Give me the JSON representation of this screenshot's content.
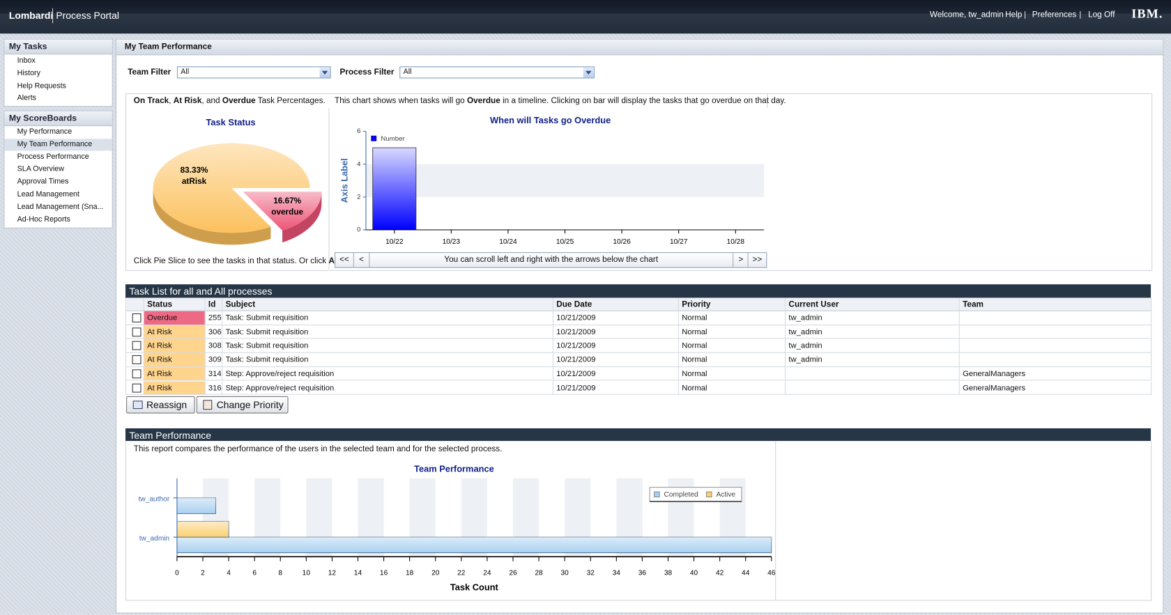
{
  "header": {
    "brand": "Lombardi",
    "product": "Process Portal",
    "welcome": "Welcome, tw_admin",
    "links": [
      "Help",
      "Preferences",
      "Log Off"
    ],
    "logo": "IBM."
  },
  "sidebar": [
    {
      "title": "My Tasks",
      "items": [
        "Inbox",
        "History",
        "Help Requests",
        "Alerts"
      ]
    },
    {
      "title": "My ScoreBoards",
      "items": [
        "My Performance",
        "My Team Performance",
        "Process Performance",
        "SLA Overview",
        "Approval Times",
        "Lead Management",
        "Lead Management (Sna...",
        "Ad-Hoc Reports"
      ],
      "selected": 1
    }
  ],
  "panel_title": "My Team Performance",
  "filters": [
    {
      "label": "Team Filter",
      "value": "All"
    },
    {
      "label": "Process Filter",
      "value": "All"
    }
  ],
  "pie": {
    "type": "pie",
    "intro": [
      "On Track",
      ", ",
      "At Risk",
      ", and ",
      "Overdue",
      " Task Percentages."
    ],
    "title": "Task Status",
    "categories": [
      "atRisk",
      "overdue"
    ],
    "values": [
      83.33,
      16.67
    ],
    "value_labels": [
      "83.33%",
      "16.67%"
    ],
    "colors": [
      "#fcc15e",
      "#ee5577"
    ],
    "explode": [
      false,
      true
    ],
    "footer": [
      "Click Pie Slice to see the tasks in that status. Or click ",
      "All",
      "."
    ]
  },
  "timeline": {
    "type": "bar",
    "description": [
      "This chart shows when tasks will go ",
      "Overdue",
      " in a timeline. Clicking on bar will display the tasks that go overdue on that day."
    ],
    "title": "When will Tasks go Overdue",
    "y_label": "Axis Label",
    "categories": [
      "10/22",
      "10/23",
      "10/24",
      "10/25",
      "10/26",
      "10/27",
      "10/28"
    ],
    "series": [
      {
        "name": "Number",
        "color": "#0000ff",
        "values": [
          5,
          0,
          0,
          0,
          0,
          0,
          0
        ]
      }
    ],
    "ylim": [
      0,
      6
    ],
    "yticks": [
      0,
      2,
      4,
      6
    ],
    "scroll": {
      "first": "<<",
      "prev": "<",
      "hint": "You can scroll left and right with the arrows below the chart",
      "next": ">",
      "last": ">>"
    }
  },
  "table": {
    "title": "Task List for all and All processes",
    "columns": [
      "Status",
      "Id",
      "Subject",
      "Due Date",
      "Priority",
      "Current User",
      "Team"
    ],
    "rows": [
      [
        "Overdue",
        255,
        "Task: Submit requisition",
        "10/21/2009",
        "Normal",
        "tw_admin",
        null
      ],
      [
        "At Risk",
        306,
        "Task: Submit requisition",
        "10/21/2009",
        "Normal",
        "tw_admin",
        null
      ],
      [
        "At Risk",
        308,
        "Task: Submit requisition",
        "10/21/2009",
        "Normal",
        "tw_admin",
        null
      ],
      [
        "At Risk",
        309,
        "Task: Submit requisition",
        "10/21/2009",
        "Normal",
        "tw_admin",
        null
      ],
      [
        "At Risk",
        314,
        "Step: Approve/reject requisition",
        "10/21/2009",
        "Normal",
        null,
        "GeneralManagers"
      ],
      [
        "At Risk",
        316,
        "Step: Approve/reject requisition",
        "10/21/2009",
        "Normal",
        null,
        "GeneralManagers"
      ]
    ],
    "status_colors": [
      "#ee6a84",
      "#ffd48c",
      "#ffd48c",
      "#ffd48c",
      "#ffd48c",
      "#ffd48c"
    ],
    "buttons": [
      "Reassign",
      "Change Priority"
    ]
  },
  "team": {
    "type": "bar",
    "orientation": "horizontal",
    "heading": "Team Performance",
    "description": "This report compares the performance of the users in the selected team and for the selected process.",
    "title": "Team Performance",
    "categories": [
      "tw_author",
      "tw_admin"
    ],
    "series": [
      {
        "name": "Completed",
        "color": "#a9d0f0",
        "values": [
          3,
          46
        ]
      },
      {
        "name": "Active",
        "color": "#fbd070",
        "values": [
          0,
          4
        ]
      }
    ],
    "x_label": "Task Count",
    "xlim": [
      0,
      46
    ],
    "xticks": [
      0,
      2,
      4,
      6,
      8,
      10,
      12,
      14,
      16,
      18,
      20,
      22,
      24,
      26,
      28,
      30,
      32,
      34,
      36,
      38,
      40,
      42,
      44,
      46
    ]
  }
}
